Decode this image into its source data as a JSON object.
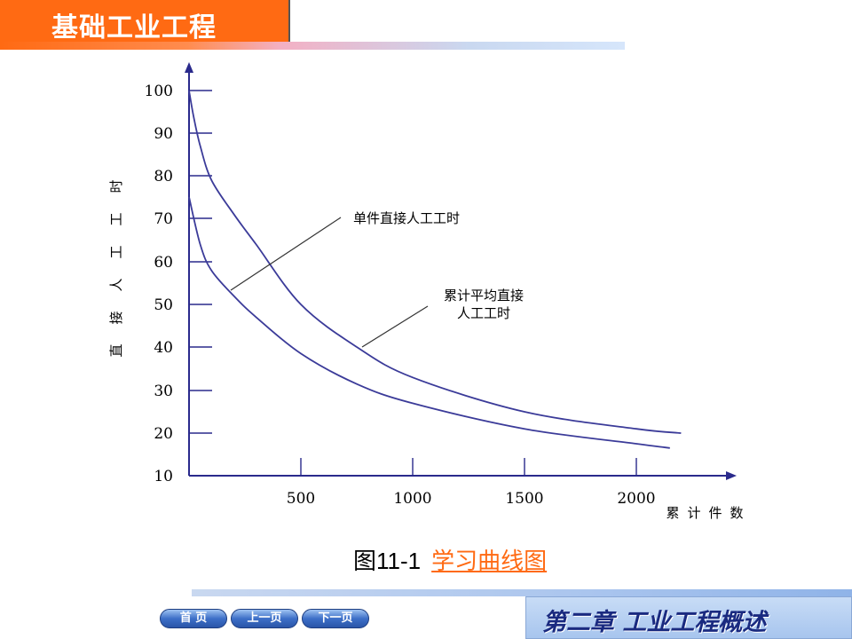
{
  "header": {
    "title": "基础工业工程"
  },
  "chart_data": {
    "type": "line",
    "ylabel": "直接人工工时",
    "xlabel": "累计件数",
    "xlim": [
      0,
      2400
    ],
    "ylim": [
      10,
      100
    ],
    "x_ticks": [
      500,
      1000,
      1500,
      2000
    ],
    "x_tick_labels": [
      "500",
      "1000",
      "1500",
      "2000"
    ],
    "y_ticks": [
      100,
      90,
      80,
      70,
      60,
      50,
      40,
      30,
      20,
      10
    ],
    "y_tick_labels": [
      "100",
      "90",
      "80",
      "70",
      "60",
      "50",
      "40",
      "30",
      "20",
      "10"
    ],
    "series": [
      {
        "name": "单件直接人工工时",
        "x": [
          0,
          50,
          100,
          200,
          300,
          500,
          750,
          1000,
          1500,
          2000,
          2150
        ],
        "y": [
          75,
          64,
          58,
          52,
          47,
          38.5,
          31.5,
          27,
          21,
          17.5,
          16.5
        ]
      },
      {
        "name": "累计平均直接人工工时",
        "x": [
          0,
          20,
          50,
          100,
          200,
          300,
          500,
          750,
          1000,
          1500,
          2000,
          2200
        ],
        "y": [
          100,
          94,
          87,
          79,
          71,
          64,
          50,
          40,
          33,
          25,
          21,
          20
        ]
      }
    ],
    "annotations": [
      {
        "lines": [
          "单件直接人工工时"
        ],
        "series": 0
      },
      {
        "lines": [
          "累计平均直接",
          "人工工时"
        ],
        "series": 1
      }
    ]
  },
  "caption": {
    "figure_number": "图11-1",
    "figure_title": "学习曲线图"
  },
  "navigation": {
    "home": "首  页",
    "prev": "上一页",
    "next": "下一页"
  },
  "footer": {
    "chapter": "第二章  工业工程概述"
  }
}
